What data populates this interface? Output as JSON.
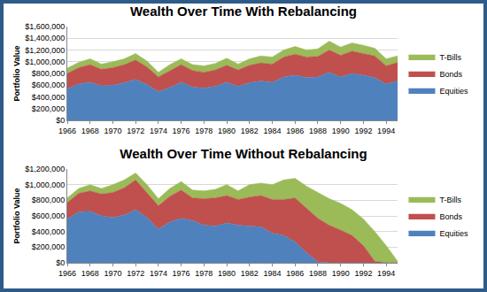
{
  "chart_data": [
    {
      "type": "area",
      "stacked": true,
      "grid": true,
      "legend": "right",
      "title": "Wealth Over Time With Rebalancing",
      "y_label": "Portfolio Value",
      "x": [
        1966,
        1967,
        1968,
        1969,
        1970,
        1971,
        1972,
        1973,
        1974,
        1975,
        1976,
        1977,
        1978,
        1979,
        1980,
        1981,
        1982,
        1983,
        1984,
        1985,
        1986,
        1987,
        1988,
        1989,
        1990,
        1991,
        1992,
        1993,
        1994,
        1995
      ],
      "xlim": [
        1966,
        1995
      ],
      "xticks": [
        1966,
        1968,
        1970,
        1972,
        1974,
        1976,
        1978,
        1980,
        1982,
        1984,
        1986,
        1988,
        1990,
        1992,
        1994
      ],
      "ylim": [
        0,
        1600000
      ],
      "yticks": [
        {
          "value": 0,
          "label": "$0"
        },
        {
          "value": 200000,
          "label": "$200,000"
        },
        {
          "value": 400000,
          "label": "$400,000"
        },
        {
          "value": 600000,
          "label": "$600,000"
        },
        {
          "value": 800000,
          "label": "$800,000"
        },
        {
          "value": 1000000,
          "label": "$1,000,000"
        },
        {
          "value": 1200000,
          "label": "$1,200,000"
        },
        {
          "value": 1400000,
          "label": "$1,400,000"
        },
        {
          "value": 1600000,
          "label": "$1,600,000"
        }
      ],
      "series": [
        {
          "name": "Equities",
          "color": "#4f81bd",
          "values": [
            540000,
            620000,
            650000,
            590000,
            600000,
            640000,
            700000,
            610000,
            490000,
            560000,
            650000,
            570000,
            550000,
            580000,
            650000,
            580000,
            640000,
            670000,
            650000,
            740000,
            770000,
            730000,
            740000,
            820000,
            740000,
            800000,
            770000,
            730000,
            620000,
            670000
          ]
        },
        {
          "name": "Bonds",
          "color": "#c0504d",
          "values": [
            260000,
            280000,
            300000,
            280000,
            300000,
            310000,
            330000,
            300000,
            250000,
            290000,
            300000,
            280000,
            270000,
            280000,
            290000,
            280000,
            300000,
            310000,
            310000,
            340000,
            360000,
            350000,
            350000,
            380000,
            370000,
            380000,
            370000,
            370000,
            310000,
            320000
          ]
        },
        {
          "name": "T-Bills",
          "color": "#9bbb59",
          "values": [
            90000,
            90000,
            100000,
            90000,
            100000,
            100000,
            110000,
            100000,
            80000,
            100000,
            100000,
            100000,
            110000,
            110000,
            120000,
            100000,
            110000,
            120000,
            120000,
            120000,
            130000,
            120000,
            130000,
            150000,
            140000,
            140000,
            140000,
            130000,
            120000,
            110000
          ]
        }
      ]
    },
    {
      "type": "area",
      "stacked": true,
      "grid": true,
      "legend": "right",
      "title": "Wealth Over Time Without Rebalancing",
      "y_label": "Portfolio Value",
      "x": [
        1966,
        1967,
        1968,
        1969,
        1970,
        1971,
        1972,
        1973,
        1974,
        1975,
        1976,
        1977,
        1978,
        1979,
        1980,
        1981,
        1982,
        1983,
        1984,
        1985,
        1986,
        1987,
        1988,
        1989,
        1990,
        1991,
        1992,
        1993,
        1994,
        1995
      ],
      "xlim": [
        1966,
        1995
      ],
      "xticks": [
        1966,
        1968,
        1970,
        1972,
        1974,
        1976,
        1978,
        1980,
        1982,
        1984,
        1986,
        1988,
        1990,
        1992,
        1994
      ],
      "ylim": [
        0,
        1200000
      ],
      "yticks": [
        {
          "value": 0,
          "label": "$0"
        },
        {
          "value": 200000,
          "label": "$200,000"
        },
        {
          "value": 400000,
          "label": "$400,000"
        },
        {
          "value": 600000,
          "label": "$600,000"
        },
        {
          "value": 800000,
          "label": "$800,000"
        },
        {
          "value": 1000000,
          "label": "$1,000,000"
        },
        {
          "value": 1200000,
          "label": "$1,200,000"
        }
      ],
      "series": [
        {
          "name": "Equities",
          "color": "#4f81bd",
          "values": [
            560000,
            650000,
            660000,
            600000,
            580000,
            610000,
            680000,
            580000,
            430000,
            520000,
            570000,
            540000,
            480000,
            470000,
            510000,
            480000,
            470000,
            460000,
            380000,
            350000,
            270000,
            130000,
            10000,
            0,
            0,
            0,
            0,
            0,
            0,
            0
          ]
        },
        {
          "name": "Bonds",
          "color": "#c0504d",
          "values": [
            210000,
            240000,
            260000,
            280000,
            320000,
            350000,
            380000,
            320000,
            300000,
            330000,
            360000,
            290000,
            340000,
            360000,
            350000,
            330000,
            370000,
            400000,
            430000,
            460000,
            560000,
            570000,
            560000,
            480000,
            420000,
            350000,
            220000,
            20000,
            0,
            0
          ]
        },
        {
          "name": "T-Bills",
          "color": "#9bbb59",
          "values": [
            60000,
            60000,
            80000,
            70000,
            100000,
            100000,
            90000,
            100000,
            90000,
            100000,
            110000,
            100000,
            100000,
            110000,
            140000,
            110000,
            160000,
            160000,
            190000,
            250000,
            250000,
            280000,
            330000,
            340000,
            340000,
            330000,
            340000,
            380000,
            220000,
            20000
          ]
        }
      ]
    }
  ]
}
